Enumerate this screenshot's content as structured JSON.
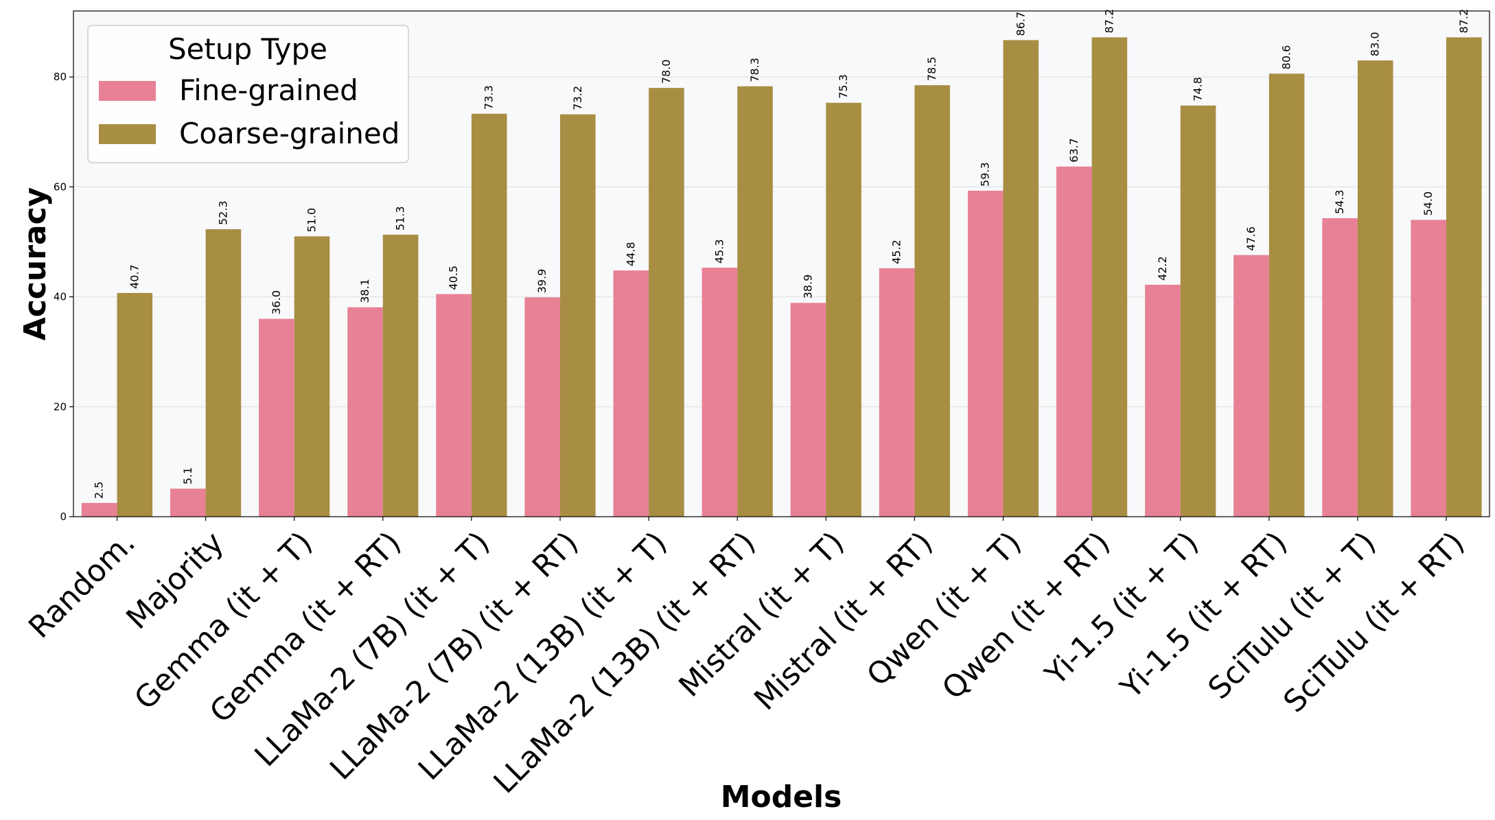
{
  "chart_data": {
    "type": "bar",
    "title": "",
    "xlabel": "Models",
    "ylabel": "Accuracy",
    "ylim": [
      0,
      92
    ],
    "yticks": [
      0,
      20,
      40,
      60,
      80
    ],
    "grid": true,
    "legend": {
      "title": "Setup Type",
      "placement": "top-left"
    },
    "categories": [
      "Random.",
      "Majority",
      "Gemma (it + T)",
      "Gemma (it + RT)",
      "LLaMa-2 (7B) (it + T)",
      "LLaMa-2 (7B) (it + RT)",
      "LLaMa-2 (13B) (it + T)",
      "LLaMa-2 (13B) (it + RT)",
      "Mistral (it + T)",
      "Mistral (it + RT)",
      "Qwen (it + T)",
      "Qwen (it + RT)",
      "Yi-1.5 (it + T)",
      "Yi-1.5 (it + RT)",
      "SciTulu (it + T)",
      "SciTulu (it + RT)"
    ],
    "series": [
      {
        "name": "Fine-grained",
        "color": "#e88195",
        "values": [
          2.5,
          5.1,
          36.0,
          38.1,
          40.5,
          39.9,
          44.8,
          45.3,
          38.9,
          45.2,
          59.3,
          63.7,
          42.2,
          47.6,
          54.3,
          54.0
        ]
      },
      {
        "name": "Coarse-grained",
        "color": "#a88e43",
        "values": [
          40.7,
          52.3,
          51.0,
          51.3,
          73.3,
          73.2,
          78.0,
          78.3,
          75.3,
          78.5,
          86.7,
          87.2,
          74.8,
          80.6,
          83.0,
          87.2
        ]
      }
    ]
  }
}
